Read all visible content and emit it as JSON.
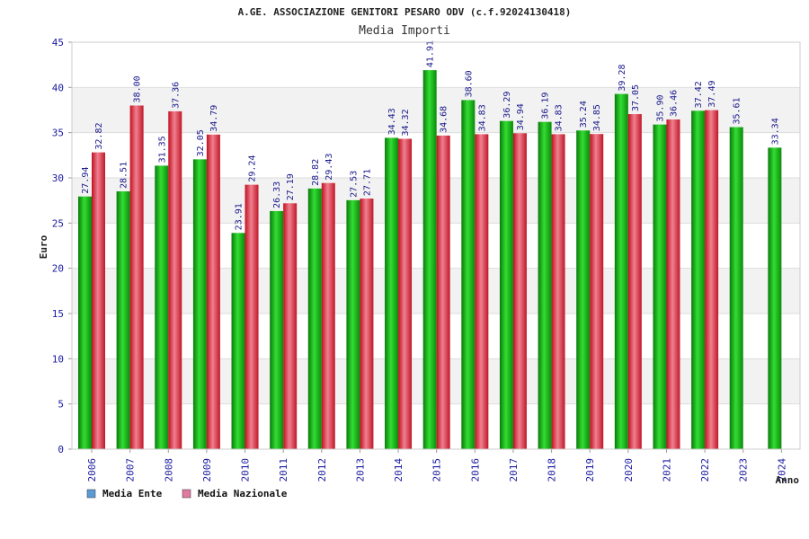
{
  "chart_data": {
    "type": "bar",
    "title": "A.GE. ASSOCIAZIONE GENITORI PESARO ODV (c.f.92024130418)",
    "subtitle": "Media Importi",
    "xlabel": "Anno",
    "ylabel": "Euro",
    "ylim": [
      0,
      45
    ],
    "yticks": [
      "0",
      "5",
      "10",
      "15",
      "20",
      "25",
      "30",
      "35",
      "40",
      "45"
    ],
    "categories": [
      "2006",
      "2007",
      "2008",
      "2009",
      "2010",
      "2011",
      "2012",
      "2013",
      "2014",
      "2015",
      "2016",
      "2017",
      "2018",
      "2019",
      "2020",
      "2021",
      "2022",
      "2023",
      "2024"
    ],
    "series": [
      {
        "name": "Media Ente",
        "color": "#22bb22",
        "legend_color": "#5b9bd5",
        "values": [
          27.94,
          28.51,
          31.35,
          32.05,
          23.91,
          26.33,
          28.82,
          27.53,
          34.43,
          41.91,
          38.6,
          36.29,
          36.19,
          35.24,
          39.28,
          35.9,
          37.42,
          35.61,
          33.34
        ],
        "labels": [
          "27.94",
          "28.51",
          "31.35",
          "32.05",
          "23.91",
          "26.33",
          "28.82",
          "27.53",
          "34.43",
          "41.91",
          "38.60",
          "36.29",
          "36.19",
          "35.24",
          "39.28",
          "35.90",
          "37.42",
          "35.61",
          "33.34"
        ]
      },
      {
        "name": "Media Nazionale",
        "color": "#e03040",
        "legend_color": "#e07aa0",
        "values": [
          32.82,
          38.0,
          37.36,
          34.79,
          29.24,
          27.19,
          29.43,
          27.71,
          34.32,
          34.68,
          34.83,
          34.94,
          34.83,
          34.85,
          37.05,
          36.46,
          37.49,
          null,
          null
        ],
        "labels": [
          "32.82",
          "38.00",
          "37.36",
          "34.79",
          "29.24",
          "27.19",
          "29.43",
          "27.71",
          "34.32",
          "34.68",
          "34.83",
          "34.94",
          "34.83",
          "34.85",
          "37.05",
          "36.46",
          "37.49",
          null,
          null
        ]
      }
    ],
    "grid": true,
    "legend": "bottom-left"
  }
}
